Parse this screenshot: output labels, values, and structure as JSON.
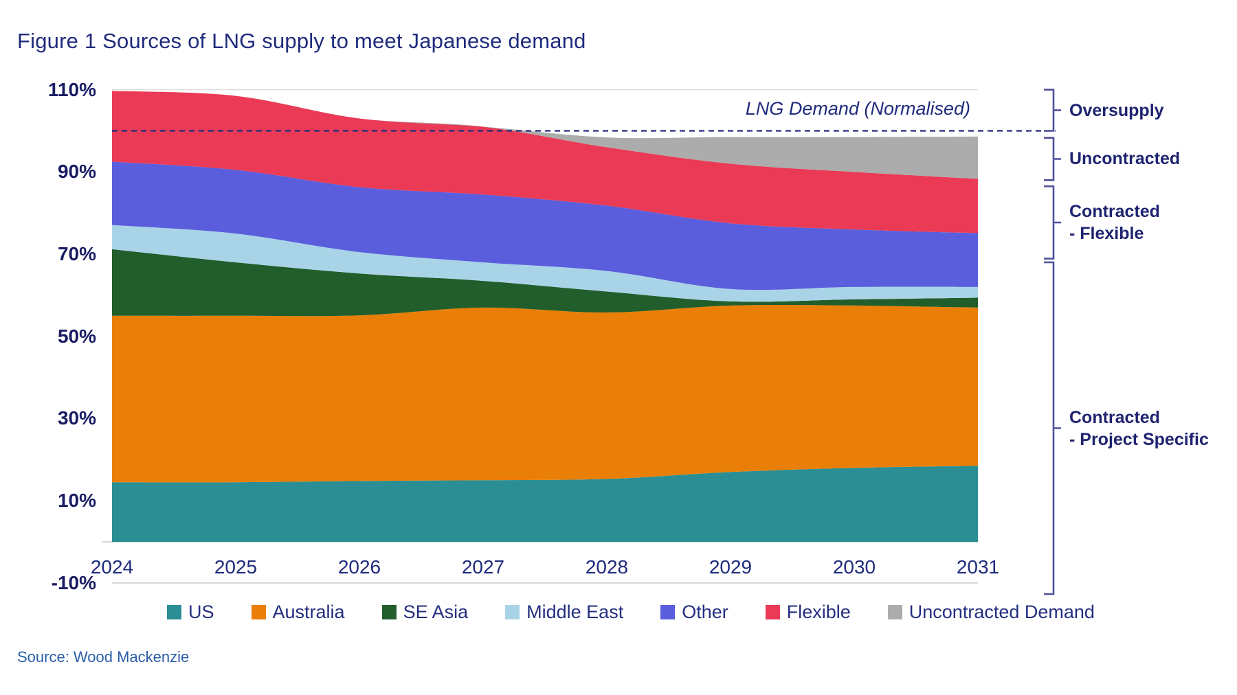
{
  "page": {
    "source": "Source: Wood Mackenzie"
  },
  "chart_data": {
    "type": "area",
    "stacked": true,
    "title": "Figure 1 Sources of LNG supply to meet Japanese demand",
    "xlabel": "",
    "ylabel": "",
    "unit": "% of normalised LNG demand",
    "grid": "off",
    "legend_position": "bottom",
    "ylim": [
      -10,
      110
    ],
    "years": [
      "2024",
      "2025",
      "2026",
      "2027",
      "2028",
      "2029",
      "2030",
      "2031"
    ],
    "y_ticks": [
      {
        "label": "110%",
        "value": 110
      },
      {
        "label": "90%",
        "value": 90
      },
      {
        "label": "70%",
        "value": 70
      },
      {
        "label": "50%",
        "value": 50
      },
      {
        "label": "30%",
        "value": 30
      },
      {
        "label": "10%",
        "value": 10
      },
      {
        "label": "-10%",
        "value": -10
      }
    ],
    "series": [
      {
        "name": "US",
        "color": "#2B8E94",
        "values": [
          14.5,
          14.5,
          14.8,
          15.0,
          15.3,
          17.0,
          18.0,
          18.5
        ]
      },
      {
        "name": "Australia",
        "color": "#E97F06",
        "values": [
          40.5,
          40.5,
          40.3,
          42.0,
          40.5,
          40.5,
          39.5,
          38.5
        ]
      },
      {
        "name": "SE Asia",
        "color": "#215E2B",
        "values": [
          16.2,
          13.0,
          10.2,
          6.5,
          5.1,
          1.0,
          1.5,
          2.4
        ]
      },
      {
        "name": "Middle East",
        "color": "#A9D4E8",
        "values": [
          5.9,
          7.0,
          5.2,
          4.5,
          5.0,
          3.0,
          3.0,
          2.6
        ]
      },
      {
        "name": "Other",
        "color": "#5A5EDC",
        "values": [
          15.4,
          15.5,
          15.8,
          16.5,
          15.9,
          16.0,
          14.0,
          13.1
        ]
      },
      {
        "name": "Flexible",
        "color": "#EA3A55",
        "values": [
          17.2,
          18.0,
          16.7,
          16.5,
          14.2,
          14.5,
          14.0,
          13.2
        ]
      },
      {
        "name": "Uncontracted Demand",
        "color": "#ACACAC",
        "values": [
          0,
          0,
          0,
          0,
          2.4,
          6.5,
          8.5,
          10.3
        ]
      }
    ],
    "demand_line": {
      "label": "LNG Demand (Normalised)",
      "value": 100,
      "style": "dashed",
      "color": "#202A7E"
    },
    "annotations": [
      {
        "label": [
          "Oversupply"
        ],
        "from": 110.0,
        "to": 100.0
      },
      {
        "label": [
          "Uncontracted"
        ],
        "from": 98.3,
        "to": 88.0
      },
      {
        "label": [
          "Contracted",
          "- Flexible"
        ],
        "from": 86.5,
        "to": 68.9
      },
      {
        "label": [
          "Contracted",
          "- Project Specific"
        ],
        "from": 68.0,
        "to": -12.7
      }
    ],
    "bracket_color": "#4E519C",
    "gridline_color": "#C9C9C9"
  }
}
